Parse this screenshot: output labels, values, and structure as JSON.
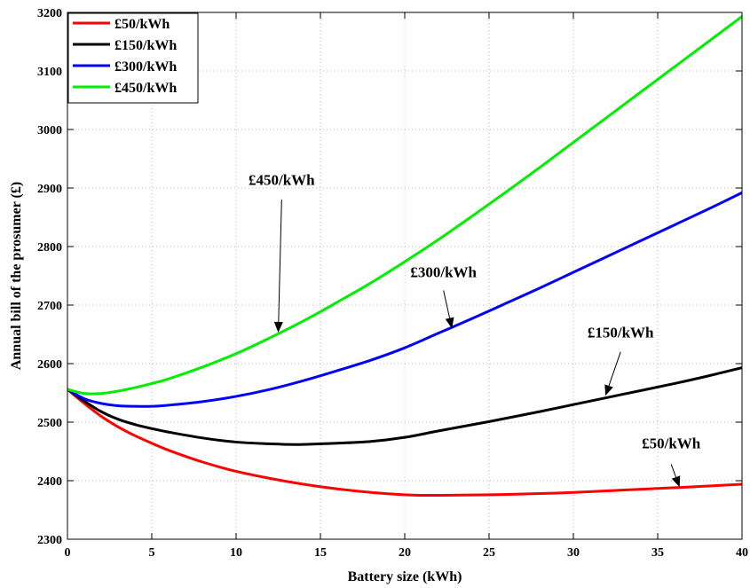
{
  "chart_data": {
    "type": "line",
    "title": "",
    "xlabel": "Battery size (kWh)",
    "ylabel": "Annual bill of the prosumer (£)",
    "xlim": [
      0,
      40
    ],
    "ylim": [
      2300,
      3200
    ],
    "xticks": [
      0,
      5,
      10,
      15,
      20,
      25,
      30,
      35,
      40
    ],
    "yticks": [
      2300,
      2400,
      2500,
      2600,
      2700,
      2800,
      2900,
      3000,
      3100,
      3200
    ],
    "grid": true,
    "legend_position": "top-left",
    "series": [
      {
        "name": "£50/kWh",
        "color": "#ff0000",
        "x": [
          0,
          1,
          2,
          3,
          4,
          5,
          6,
          8,
          10,
          12,
          14,
          16,
          18,
          20,
          21,
          22,
          25,
          28,
          30,
          33,
          36,
          38,
          40
        ],
        "y": [
          2556,
          2532,
          2510,
          2492,
          2477,
          2464,
          2452,
          2432,
          2416,
          2404,
          2394,
          2386,
          2380,
          2376,
          2375,
          2375,
          2376,
          2378,
          2380,
          2384,
          2388,
          2391,
          2394
        ]
      },
      {
        "name": "£150/kWh",
        "color": "#000000",
        "x": [
          0,
          1,
          2,
          3,
          4,
          5,
          6,
          8,
          10,
          12,
          13,
          14,
          16,
          18,
          20,
          22,
          25,
          28,
          30,
          33,
          36,
          38,
          40
        ],
        "y": [
          2556,
          2536,
          2518,
          2505,
          2496,
          2489,
          2483,
          2473,
          2466,
          2463,
          2462,
          2462,
          2464,
          2467,
          2474,
          2485,
          2501,
          2518,
          2530,
          2548,
          2566,
          2579,
          2593
        ]
      },
      {
        "name": "£300/kWh",
        "color": "#0000ff",
        "x": [
          0,
          1,
          2,
          3,
          4,
          5,
          6,
          8,
          10,
          12,
          14,
          16,
          18,
          20,
          22,
          24,
          26,
          28,
          30,
          32,
          34,
          36,
          38,
          40
        ],
        "y": [
          2556,
          2540,
          2532,
          2528,
          2527,
          2527,
          2529,
          2535,
          2544,
          2556,
          2571,
          2588,
          2606,
          2627,
          2652,
          2677,
          2703,
          2729,
          2756,
          2783,
          2810,
          2837,
          2864,
          2892
        ]
      },
      {
        "name": "£450/kWh",
        "color": "#00ee00",
        "x": [
          0,
          1,
          2,
          3,
          4,
          5,
          6,
          8,
          10,
          12,
          14,
          16,
          18,
          20,
          22,
          24,
          26,
          28,
          30,
          32,
          34,
          36,
          38,
          40
        ],
        "y": [
          2556,
          2549,
          2549,
          2553,
          2559,
          2566,
          2574,
          2594,
          2617,
          2644,
          2673,
          2705,
          2738,
          2774,
          2812,
          2852,
          2893,
          2935,
          2978,
          3021,
          3064,
          3107,
          3150,
          3193
        ]
      }
    ],
    "annotations": [
      {
        "text": "£450/kWh",
        "tip_x": 12.5,
        "tip_y": 2653,
        "label_x": 12.7,
        "label_y": 2905,
        "line_top_y": 2880
      },
      {
        "text": "£300/kWh",
        "tip_x": 22.8,
        "tip_y": 2660,
        "label_x": 22.3,
        "label_y": 2748,
        "line_top_y": 2725
      },
      {
        "text": "£150/kWh",
        "tip_x": 31.9,
        "tip_y": 2545,
        "label_x": 32.8,
        "label_y": 2645,
        "line_top_y": 2620
      },
      {
        "text": "£50/kWh",
        "tip_x": 36.3,
        "tip_y": 2389,
        "label_x": 35.8,
        "label_y": 2455,
        "line_top_y": 2428
      }
    ]
  }
}
